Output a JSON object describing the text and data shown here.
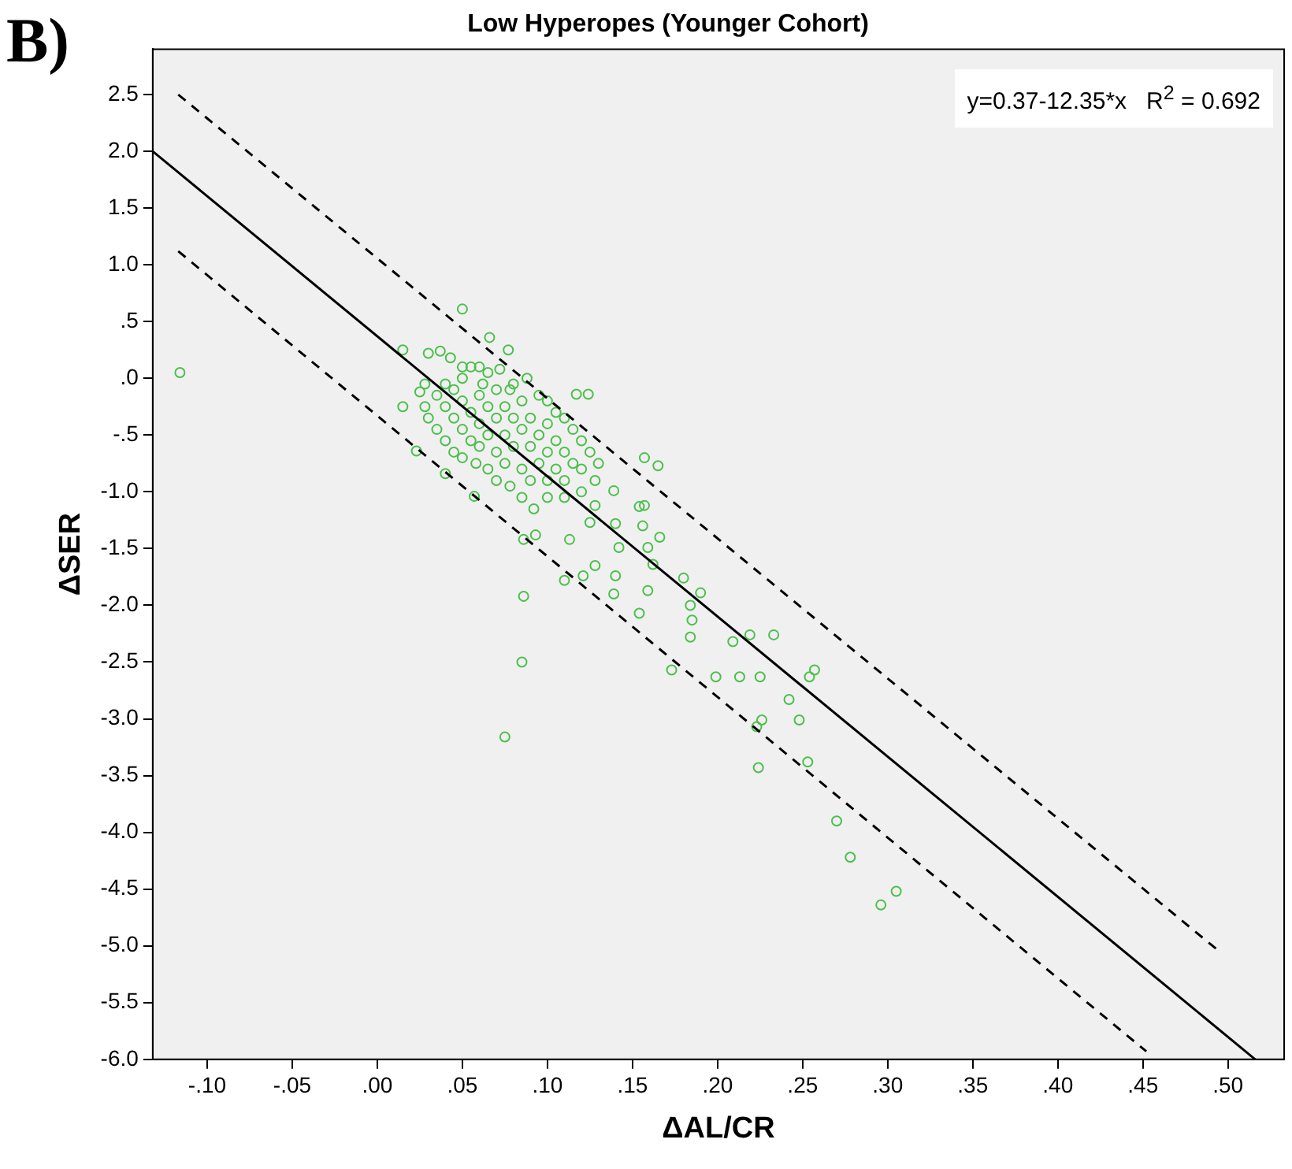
{
  "chart_data": {
    "type": "scatter",
    "title": "Low Hyperopes (Younger Cohort)",
    "xlabel": "ΔAL/CR",
    "ylabel": "ΔSER",
    "annotations": [
      "B)",
      "y=0.37-12.35*x   R$^{2}$ = 0.692"
    ],
    "xlim": [
      -0.132,
      0.533
    ],
    "xticks": [
      {
        "value": -0.1,
        "label": "-.10"
      },
      {
        "value": -0.05,
        "label": "-.05"
      },
      {
        "value": 0,
        "label": ".00"
      },
      {
        "value": 0.05,
        "label": ".05"
      },
      {
        "value": 0.1,
        "label": ".10"
      },
      {
        "value": 0.15,
        "label": ".15"
      },
      {
        "value": 0.2,
        "label": ".20"
      },
      {
        "value": 0.25,
        "label": ".25"
      },
      {
        "value": 0.3,
        "label": ".30"
      },
      {
        "value": 0.35,
        "label": ".35"
      },
      {
        "value": 0.4,
        "label": ".40"
      },
      {
        "value": 0.45,
        "label": ".45"
      },
      {
        "value": 0.5,
        "label": ".50"
      }
    ],
    "ylim": [
      -6,
      2.9
    ],
    "yticks": [
      {
        "value": -6,
        "label": "-6.0"
      },
      {
        "value": -5.5,
        "label": "-5.5"
      },
      {
        "value": -5,
        "label": "-5.0"
      },
      {
        "value": -4.5,
        "label": "-4.5"
      },
      {
        "value": -4,
        "label": "-4.0"
      },
      {
        "value": -3.5,
        "label": "-3.5"
      },
      {
        "value": -3,
        "label": "-3.0"
      },
      {
        "value": -2.5,
        "label": "-2.5"
      },
      {
        "value": -2,
        "label": "-2.0"
      },
      {
        "value": -1.5,
        "label": "-1.5"
      },
      {
        "value": -1,
        "label": "-1.0"
      },
      {
        "value": -0.5,
        "label": "-.5"
      },
      {
        "value": 0,
        "label": ".0"
      },
      {
        "value": 0.5,
        "label": ".5"
      },
      {
        "value": 1,
        "label": "1.0"
      },
      {
        "value": 1.5,
        "label": "1.5"
      },
      {
        "value": 2,
        "label": "2.0"
      },
      {
        "value": 2.5,
        "label": "2.5"
      }
    ],
    "series": [
      {
        "color": "#4cbf4c",
        "marker": "circle",
        "x": [
          -0.116,
          0.05,
          0.066,
          0.077,
          0.015,
          0.015,
          0.023,
          0.04,
          0.057,
          0.117,
          0.124,
          0.157,
          0.165,
          0.139,
          0.086,
          0.085,
          0.075,
          0.086,
          0.093,
          0.11,
          0.121,
          0.128,
          0.113,
          0.125,
          0.128,
          0.14,
          0.142,
          0.14,
          0.139,
          0.154,
          0.157,
          0.156,
          0.159,
          0.166,
          0.162,
          0.159,
          0.154,
          0.173,
          0.18,
          0.184,
          0.185,
          0.184,
          0.19,
          0.199,
          0.209,
          0.213,
          0.219,
          0.233,
          0.225,
          0.226,
          0.223,
          0.224,
          0.242,
          0.248,
          0.254,
          0.257,
          0.253,
          0.27,
          0.278,
          0.296,
          0.305,
          0.03,
          0.037,
          0.043,
          0.05,
          0.055,
          0.06,
          0.065,
          0.072,
          0.08,
          0.088,
          0.095,
          0.1,
          0.105,
          0.11,
          0.115,
          0.12,
          0.125,
          0.13,
          0.128,
          0.12,
          0.11,
          0.1,
          0.092,
          0.085,
          0.078,
          0.07,
          0.065,
          0.058,
          0.05,
          0.045,
          0.04,
          0.035,
          0.03,
          0.028,
          0.025,
          0.028,
          0.035,
          0.04,
          0.045,
          0.045,
          0.05,
          0.05,
          0.055,
          0.055,
          0.06,
          0.06,
          0.06,
          0.065,
          0.065,
          0.07,
          0.07,
          0.07,
          0.075,
          0.075,
          0.075,
          0.08,
          0.08,
          0.085,
          0.085,
          0.085,
          0.09,
          0.09,
          0.09,
          0.095,
          0.095,
          0.1,
          0.1,
          0.1,
          0.105,
          0.105,
          0.11,
          0.11,
          0.115,
          0.12,
          0.04,
          0.05,
          0.062,
          0.078
        ],
        "values": [
          0.05,
          0.61,
          0.36,
          0.25,
          0.25,
          -0.25,
          -0.64,
          -0.84,
          -1.04,
          -0.14,
          -0.14,
          -0.7,
          -0.77,
          -0.99,
          -1.92,
          -2.5,
          -3.16,
          -1.42,
          -1.38,
          -1.78,
          -1.74,
          -1.65,
          -1.42,
          -1.27,
          -1.12,
          -1.28,
          -1.49,
          -1.74,
          -1.9,
          -1.13,
          -1.12,
          -1.3,
          -1.49,
          -1.4,
          -1.64,
          -1.87,
          -2.07,
          -2.57,
          -1.76,
          -2,
          -2.13,
          -2.28,
          -1.89,
          -2.63,
          -2.32,
          -2.63,
          -2.26,
          -2.26,
          -2.63,
          -3.01,
          -3.07,
          -3.43,
          -2.83,
          -3.01,
          -2.63,
          -2.57,
          -3.38,
          -3.9,
          -4.22,
          -4.64,
          -4.52,
          0.22,
          0.24,
          0.18,
          0.1,
          0.1,
          0.1,
          0.05,
          0.08,
          -0.05,
          0,
          -0.15,
          -0.2,
          -0.3,
          -0.35,
          -0.45,
          -0.55,
          -0.65,
          -0.75,
          -0.9,
          -1,
          -1.05,
          -1.05,
          -1.15,
          -1.05,
          -0.95,
          -0.9,
          -0.8,
          -0.75,
          -0.7,
          -0.65,
          -0.55,
          -0.45,
          -0.35,
          -0.25,
          -0.12,
          -0.05,
          -0.15,
          -0.25,
          -0.1,
          -0.35,
          -0.2,
          -0.45,
          -0.3,
          -0.55,
          -0.15,
          -0.4,
          -0.6,
          -0.25,
          -0.5,
          -0.1,
          -0.35,
          -0.65,
          -0.25,
          -0.5,
          -0.75,
          -0.35,
          -0.6,
          -0.2,
          -0.45,
          -0.8,
          -0.35,
          -0.6,
          -0.9,
          -0.5,
          -0.75,
          -0.4,
          -0.65,
          -0.9,
          -0.55,
          -0.8,
          -0.65,
          -0.9,
          -0.75,
          -0.8,
          -0.05,
          0,
          -0.05,
          -0.1
        ]
      },
      {
        "type": "line",
        "color": "#000000",
        "marker": "none",
        "line_style": "solid",
        "x": [
          -0.132,
          0.516
        ],
        "values": [
          2.0,
          -6.0
        ]
      },
      {
        "type": "line",
        "color": "#000000",
        "marker": "none",
        "line_style": "dashed",
        "x": [
          -0.117,
          0.495
        ],
        "values": [
          2.5,
          -5.05
        ]
      },
      {
        "type": "line",
        "color": "#000000",
        "marker": "none",
        "line_style": "dashed",
        "x": [
          -0.117,
          0.452
        ],
        "values": [
          1.12,
          -5.93
        ]
      }
    ]
  }
}
